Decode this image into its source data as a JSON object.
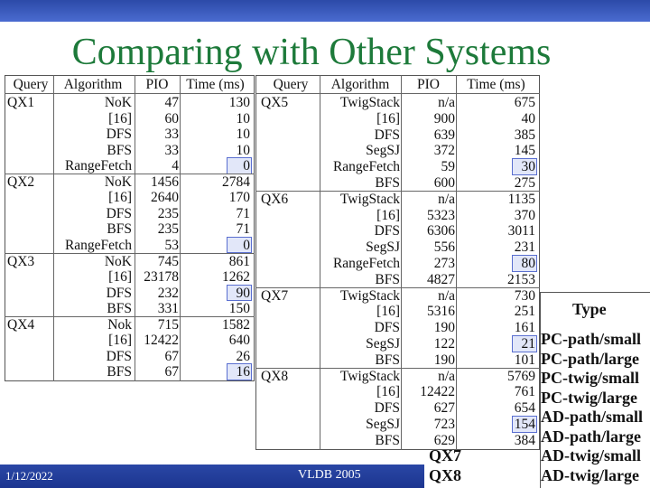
{
  "title": "Comparing with Other Systems",
  "left_table": {
    "columns": [
      "Query",
      "Algorithm",
      "PIO",
      "Time (ms)"
    ],
    "boxed_rows": [
      4,
      9,
      12,
      17
    ],
    "rows": [
      [
        "QX1",
        "NoK",
        47,
        130
      ],
      [
        null,
        "[16]",
        60,
        10
      ],
      [
        null,
        "DFS",
        33,
        10
      ],
      [
        null,
        "BFS",
        33,
        10
      ],
      [
        null,
        "RangeFetch",
        4,
        0
      ],
      [
        "QX2",
        "NoK",
        1456,
        2784
      ],
      [
        null,
        "[16]",
        2640,
        170
      ],
      [
        null,
        "DFS",
        235,
        71
      ],
      [
        null,
        "BFS",
        235,
        71
      ],
      [
        null,
        "RangeFetch",
        53,
        0
      ],
      [
        "QX3",
        "NoK",
        745,
        861
      ],
      [
        null,
        "[16]",
        23178,
        1262
      ],
      [
        null,
        "DFS",
        232,
        90
      ],
      [
        null,
        "BFS",
        331,
        150
      ],
      [
        "QX4",
        "Nok",
        715,
        1582
      ],
      [
        null,
        "[16]",
        12422,
        640
      ],
      [
        null,
        "DFS",
        67,
        26
      ],
      [
        null,
        "BFS",
        67,
        16
      ]
    ]
  },
  "right_table": {
    "columns": [
      "Query",
      "Algorithm",
      "PIO",
      "Time (ms)"
    ],
    "boxed_rows": [
      4,
      10,
      15,
      20
    ],
    "rows": [
      [
        "QX5",
        "TwigStack",
        "n/a",
        675
      ],
      [
        null,
        "[16]",
        900,
        40
      ],
      [
        null,
        "DFS",
        639,
        385
      ],
      [
        null,
        "SegSJ",
        372,
        145
      ],
      [
        null,
        "RangeFetch",
        59,
        30
      ],
      [
        null,
        "BFS",
        600,
        275
      ],
      [
        "QX6",
        "TwigStack",
        "n/a",
        1135
      ],
      [
        null,
        "[16]",
        5323,
        370
      ],
      [
        null,
        "DFS",
        6306,
        3011
      ],
      [
        null,
        "SegSJ",
        556,
        231
      ],
      [
        null,
        "RangeFetch",
        273,
        80
      ],
      [
        null,
        "BFS",
        4827,
        2153
      ],
      [
        "QX7",
        "TwigStack",
        "n/a",
        730
      ],
      [
        null,
        "[16]",
        5316,
        251
      ],
      [
        null,
        "DFS",
        190,
        161
      ],
      [
        null,
        "SegSJ",
        122,
        21
      ],
      [
        null,
        "BFS",
        190,
        101
      ],
      [
        "QX8",
        "TwigStack",
        "n/a",
        5769
      ],
      [
        null,
        "[16]",
        12422,
        761
      ],
      [
        null,
        "DFS",
        627,
        654
      ],
      [
        null,
        "SegSJ",
        723,
        154
      ],
      [
        null,
        "BFS",
        629,
        384
      ]
    ]
  },
  "type_table": {
    "header": "Type",
    "rows": [
      [
        null,
        "PC-path/small"
      ],
      [
        null,
        "PC-path/large"
      ],
      [
        null,
        "PC-twig/small"
      ],
      [
        null,
        "PC-twig/large"
      ],
      [
        null,
        "AD-path/small"
      ],
      [
        null,
        "AD-path/large"
      ],
      [
        "QX7",
        "AD-twig/small"
      ],
      [
        "QX8",
        "AD-twig/large"
      ]
    ]
  },
  "footer": {
    "date": "1/12/2022",
    "venue": "VLDB 2005"
  }
}
